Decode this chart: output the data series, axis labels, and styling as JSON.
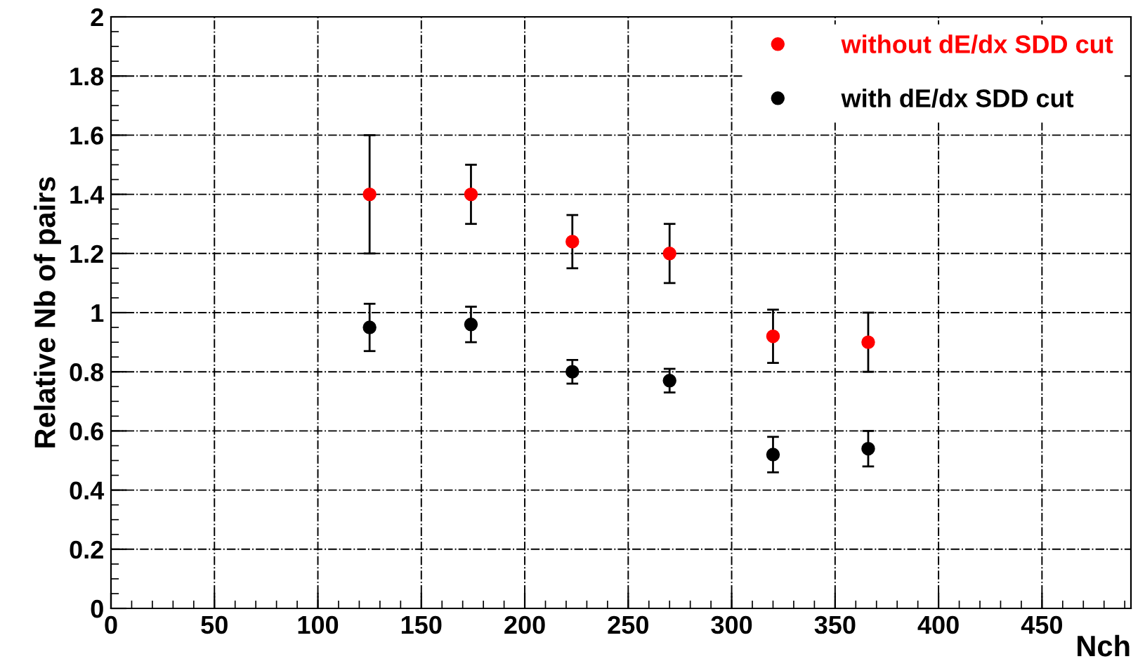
{
  "chart_data": {
    "type": "scatter",
    "xlabel": "Nch",
    "ylabel": "Relative Nb of pairs",
    "x": [
      125,
      174,
      223,
      270,
      320,
      366
    ],
    "series": [
      {
        "name": "without dE/dx SDD cut",
        "color": "#ff0000",
        "values": [
          1.4,
          1.4,
          1.24,
          1.2,
          0.92,
          0.9
        ],
        "errors": [
          0.2,
          0.1,
          0.09,
          0.1,
          0.09,
          0.1
        ]
      },
      {
        "name": "with dE/dx SDD cut",
        "color": "#000000",
        "values": [
          0.95,
          0.96,
          0.8,
          0.77,
          0.52,
          0.54
        ],
        "errors": [
          0.08,
          0.06,
          0.04,
          0.04,
          0.06,
          0.06
        ]
      }
    ],
    "xlim": [
      0,
      493
    ],
    "xticks": [
      0,
      50,
      100,
      150,
      200,
      250,
      300,
      350,
      400,
      450
    ],
    "ylim": [
      0,
      2
    ],
    "yticks": [
      0,
      0.2,
      0.4,
      0.6,
      0.8,
      1,
      1.2,
      1.4,
      1.6,
      1.8,
      2
    ],
    "grid": true,
    "legend": "top right",
    "marker": "circle"
  }
}
